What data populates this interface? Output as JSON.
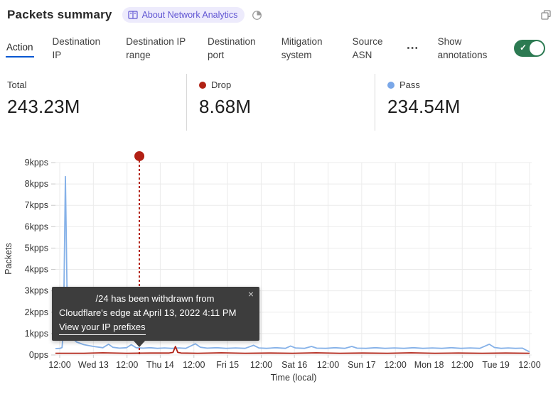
{
  "header": {
    "title": "Packets summary",
    "badge_label": "About Network Analytics",
    "badge_bg": "#edebfc",
    "badge_color": "#6156d3"
  },
  "tabs": [
    {
      "label": "Action",
      "selected": true
    },
    {
      "label": "Destination IP",
      "selected": false
    },
    {
      "label": "Destination IP range",
      "selected": false
    },
    {
      "label": "Destination port",
      "selected": false
    },
    {
      "label": "Mitigation system",
      "selected": false
    },
    {
      "label": "Source ASN",
      "selected": false
    }
  ],
  "more_tabs_icon": "⋯",
  "annotations_toggle": {
    "label": "Show annotations",
    "on": true,
    "on_color": "#2c7a52",
    "check_icon": "✓"
  },
  "stats": [
    {
      "label": "Total",
      "value": "243.23M",
      "color": null
    },
    {
      "label": "Drop",
      "value": "8.68M",
      "color": "#b02114"
    },
    {
      "label": "Pass",
      "value": "234.54M",
      "color": "#7aa7e8"
    }
  ],
  "chart_data": {
    "type": "line",
    "title": "",
    "xlabel": "Time (local)",
    "ylabel": "Packets",
    "y_ticks": [
      "0pps",
      "1kpps",
      "2kpps",
      "3kpps",
      "4kpps",
      "5kpps",
      "6kpps",
      "7kpps",
      "8kpps",
      "9kpps"
    ],
    "ylim": [
      0,
      9
    ],
    "grid": true,
    "x_ticks": [
      {
        "label": "12:00",
        "f": 0.009
      },
      {
        "label": "Wed 13",
        "f": 0.08
      },
      {
        "label": "12:00",
        "f": 0.151
      },
      {
        "label": "Thu 14",
        "f": 0.221
      },
      {
        "label": "12:00",
        "f": 0.292
      },
      {
        "label": "Fri 15",
        "f": 0.363
      },
      {
        "label": "12:00",
        "f": 0.434
      },
      {
        "label": "Sat 16",
        "f": 0.504
      },
      {
        "label": "12:00",
        "f": 0.575
      },
      {
        "label": "Sun 17",
        "f": 0.646
      },
      {
        "label": "12:00",
        "f": 0.717
      },
      {
        "label": "Mon 18",
        "f": 0.788
      },
      {
        "label": "12:00",
        "f": 0.858
      },
      {
        "label": "Tue 19",
        "f": 0.929
      },
      {
        "label": "12:00",
        "f": 1.0
      }
    ],
    "series": [
      {
        "name": "Pass",
        "color": "#85b1e8",
        "points": [
          [
            0.0,
            0.3
          ],
          [
            0.01,
            0.31
          ],
          [
            0.014,
            0.35
          ],
          [
            0.017,
            1.2
          ],
          [
            0.021,
            8.35
          ],
          [
            0.025,
            2.1
          ],
          [
            0.029,
            1.0
          ],
          [
            0.035,
            0.8
          ],
          [
            0.045,
            0.6
          ],
          [
            0.06,
            0.48
          ],
          [
            0.08,
            0.4
          ],
          [
            0.1,
            0.34
          ],
          [
            0.112,
            0.5
          ],
          [
            0.121,
            0.36
          ],
          [
            0.135,
            0.32
          ],
          [
            0.15,
            0.34
          ],
          [
            0.16,
            0.48
          ],
          [
            0.17,
            0.34
          ],
          [
            0.185,
            0.32
          ],
          [
            0.2,
            0.34
          ],
          [
            0.215,
            0.31
          ],
          [
            0.23,
            0.33
          ],
          [
            0.245,
            0.31
          ],
          [
            0.26,
            0.33
          ],
          [
            0.275,
            0.31
          ],
          [
            0.295,
            0.52
          ],
          [
            0.306,
            0.36
          ],
          [
            0.32,
            0.32
          ],
          [
            0.34,
            0.34
          ],
          [
            0.36,
            0.31
          ],
          [
            0.38,
            0.33
          ],
          [
            0.4,
            0.31
          ],
          [
            0.418,
            0.45
          ],
          [
            0.429,
            0.33
          ],
          [
            0.445,
            0.31
          ],
          [
            0.465,
            0.34
          ],
          [
            0.485,
            0.31
          ],
          [
            0.496,
            0.42
          ],
          [
            0.506,
            0.33
          ],
          [
            0.525,
            0.31
          ],
          [
            0.54,
            0.4
          ],
          [
            0.551,
            0.32
          ],
          [
            0.57,
            0.31
          ],
          [
            0.59,
            0.34
          ],
          [
            0.61,
            0.31
          ],
          [
            0.625,
            0.4
          ],
          [
            0.636,
            0.32
          ],
          [
            0.655,
            0.31
          ],
          [
            0.675,
            0.34
          ],
          [
            0.695,
            0.31
          ],
          [
            0.715,
            0.33
          ],
          [
            0.735,
            0.31
          ],
          [
            0.755,
            0.34
          ],
          [
            0.775,
            0.31
          ],
          [
            0.795,
            0.33
          ],
          [
            0.815,
            0.31
          ],
          [
            0.835,
            0.34
          ],
          [
            0.855,
            0.31
          ],
          [
            0.875,
            0.33
          ],
          [
            0.895,
            0.31
          ],
          [
            0.915,
            0.5
          ],
          [
            0.926,
            0.35
          ],
          [
            0.94,
            0.31
          ],
          [
            0.955,
            0.33
          ],
          [
            0.97,
            0.31
          ],
          [
            0.985,
            0.32
          ],
          [
            0.995,
            0.2
          ],
          [
            1.0,
            0.15
          ]
        ]
      },
      {
        "name": "Drop",
        "color": "#b02114",
        "points": [
          [
            0.0,
            0.08
          ],
          [
            0.06,
            0.08
          ],
          [
            0.1,
            0.1
          ],
          [
            0.15,
            0.08
          ],
          [
            0.2,
            0.09
          ],
          [
            0.24,
            0.09
          ],
          [
            0.248,
            0.12
          ],
          [
            0.253,
            0.4
          ],
          [
            0.258,
            0.12
          ],
          [
            0.265,
            0.09
          ],
          [
            0.3,
            0.08
          ],
          [
            0.35,
            0.1
          ],
          [
            0.4,
            0.08
          ],
          [
            0.45,
            0.09
          ],
          [
            0.5,
            0.08
          ],
          [
            0.55,
            0.1
          ],
          [
            0.6,
            0.08
          ],
          [
            0.65,
            0.09
          ],
          [
            0.7,
            0.08
          ],
          [
            0.75,
            0.1
          ],
          [
            0.8,
            0.08
          ],
          [
            0.85,
            0.09
          ],
          [
            0.9,
            0.08
          ],
          [
            0.95,
            0.09
          ],
          [
            1.0,
            0.08
          ]
        ]
      }
    ],
    "annotation": {
      "x_f": 0.177,
      "dot_kpps": 9.3,
      "color": "#b22014",
      "tooltip": {
        "line1": "/24 has been withdrawn from",
        "line2": "Cloudflare's edge at April 13, 2022 4:11 PM",
        "link_label": "View your IP prefixes",
        "close_icon": "×"
      }
    }
  }
}
